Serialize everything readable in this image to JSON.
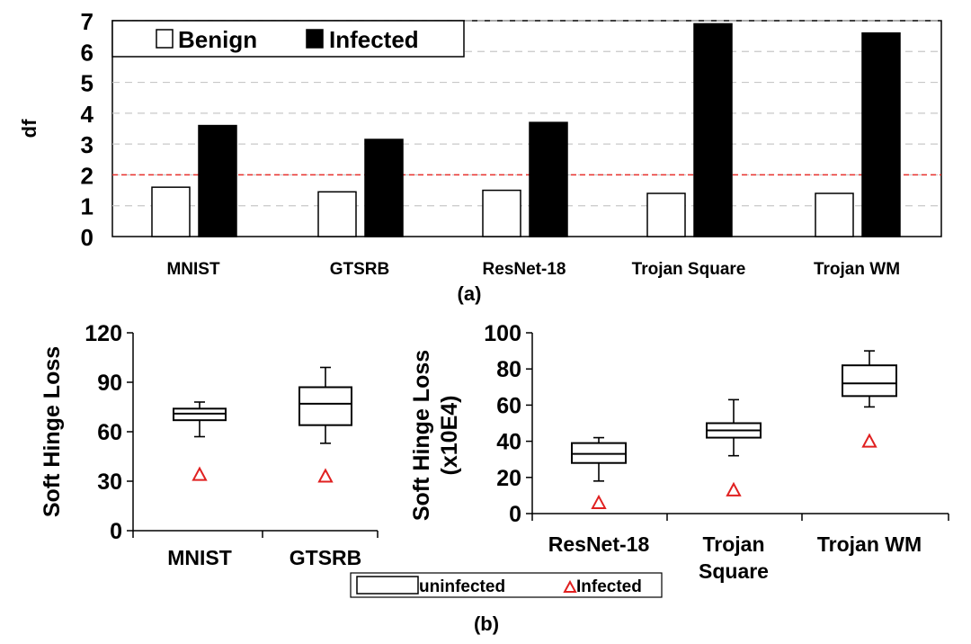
{
  "chart_data": [
    {
      "id": "a",
      "type": "bar",
      "caption": "(a)",
      "ylabel": "df",
      "ylim": [
        0,
        7
      ],
      "yticks": [
        0,
        1,
        2,
        3,
        4,
        5,
        6,
        7
      ],
      "grid": true,
      "threshold": 2.0,
      "threshold_color": "#e8302c",
      "categories": [
        "MNIST",
        "GTSRB",
        "ResNet-18",
        "Trojan Square",
        "Trojan WM"
      ],
      "series": [
        {
          "name": "Benign",
          "values": [
            1.6,
            1.45,
            1.5,
            1.4,
            1.4
          ],
          "color": "#ffffff"
        },
        {
          "name": "Infected",
          "values": [
            3.6,
            3.15,
            3.7,
            6.9,
            6.6
          ],
          "color": "#000000"
        }
      ],
      "legend": "top-left"
    },
    {
      "id": "b-left",
      "type": "box",
      "ylabel": "Soft Hinge Loss",
      "ylim": [
        0,
        120
      ],
      "yticks": [
        0,
        30,
        60,
        90,
        120
      ],
      "categories": [
        "MNIST",
        "GTSRB"
      ],
      "boxes": [
        {
          "min": 57,
          "q1": 67,
          "median": 71,
          "q3": 74,
          "max": 78
        },
        {
          "min": 53,
          "q1": 64,
          "median": 77,
          "q3": 87,
          "max": 99
        }
      ],
      "infected": [
        34,
        33
      ],
      "infected_color": "#e02020"
    },
    {
      "id": "b-right",
      "type": "box",
      "ylabel": "Soft Hinge Loss",
      "ylabel2": "(x10E4)",
      "ylim": [
        0,
        100
      ],
      "yticks": [
        0,
        20,
        40,
        60,
        80,
        100
      ],
      "categories": [
        "ResNet-18",
        "Trojan Square",
        "Trojan WM"
      ],
      "category_lines": [
        [
          "ResNet-18"
        ],
        [
          "Trojan",
          "Square"
        ],
        [
          "Trojan WM"
        ]
      ],
      "boxes": [
        {
          "min": 18,
          "q1": 28,
          "median": 33,
          "q3": 39,
          "max": 42
        },
        {
          "min": 32,
          "q1": 42,
          "median": 46,
          "q3": 50,
          "max": 63
        },
        {
          "min": 59,
          "q1": 65,
          "median": 72,
          "q3": 82,
          "max": 90
        }
      ],
      "infected": [
        6,
        13,
        40
      ],
      "infected_color": "#e02020"
    }
  ],
  "legend_b": {
    "uninfected": "uninfected",
    "infected": "Infected"
  },
  "caption_b": "(b)"
}
